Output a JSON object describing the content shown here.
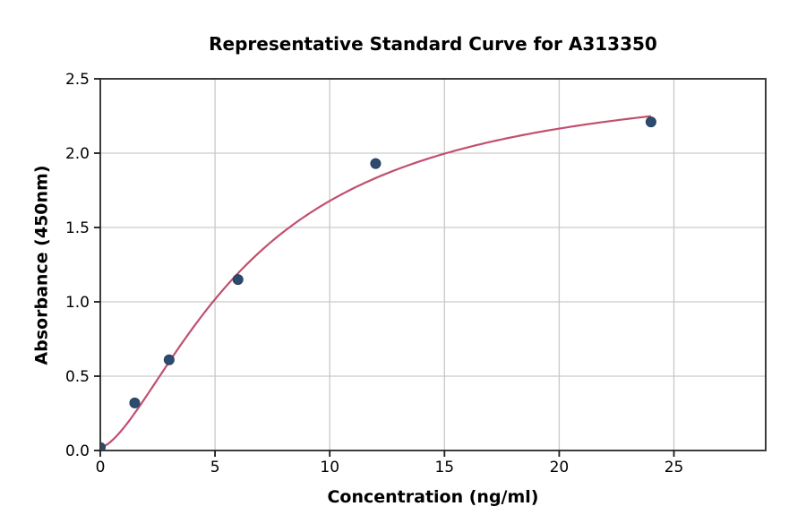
{
  "chart_data": {
    "type": "scatter",
    "title": "Representative Standard Curve for A313350",
    "xlabel": "Concentration (ng/ml)",
    "ylabel": "Absorbance (450nm)",
    "xlim": [
      0,
      29
    ],
    "ylim": [
      0,
      2.5
    ],
    "xticks": [
      0,
      5,
      10,
      15,
      20,
      25
    ],
    "xtick_labels": [
      "0",
      "5",
      "10",
      "15",
      "20",
      "25"
    ],
    "yticks": [
      0,
      0.5,
      1,
      1.5,
      2,
      2.5
    ],
    "ytick_labels": [
      "0.0",
      "0.5",
      "1.0",
      "1.5",
      "2.0",
      "2.5"
    ],
    "grid": true,
    "legend": "none",
    "points": [
      {
        "x": 0,
        "y": 0.02
      },
      {
        "x": 1.5,
        "y": 0.32
      },
      {
        "x": 3,
        "y": 0.61
      },
      {
        "x": 6,
        "y": 1.15
      },
      {
        "x": 12,
        "y": 1.93
      },
      {
        "x": 24,
        "y": 2.21
      }
    ],
    "fit_curve": {
      "model": "4PL",
      "min": 0.02,
      "max": 2.55,
      "ec50": 6.6,
      "hill": 1.55,
      "x_start": 0,
      "x_end": 24
    },
    "colors": {
      "point_fill": "#2e4b6e",
      "point_edge": "#22405f",
      "curve": "#c0506e",
      "grid": "#c9c9c9",
      "spine": "#3d3d3d",
      "tick": "#1a1a1a",
      "text": "#000000",
      "background": "#ffffff"
    }
  }
}
